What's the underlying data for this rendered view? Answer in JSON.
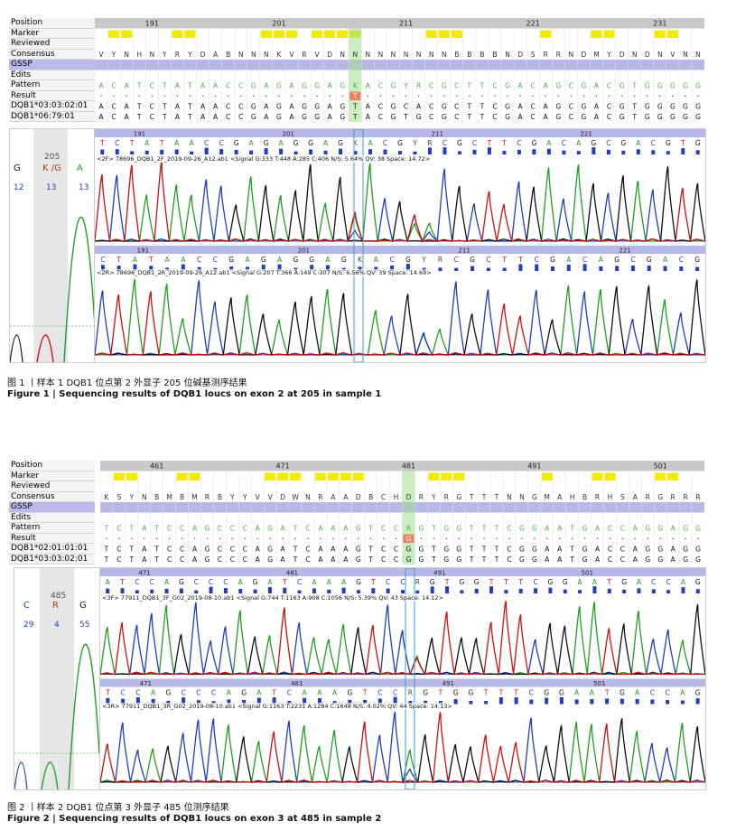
{
  "rowLabels": [
    "Position",
    "Marker",
    "Reviewed",
    "Consensus",
    "GSSP",
    "Edits",
    "Pattern",
    "Result"
  ],
  "figure1": {
    "positions": [
      "191",
      "201",
      "211",
      "221",
      "231"
    ],
    "consensus": "VYNHNYRYDABNNNKVRVDNNNNNNNNNBBBBNDSRRNDMYDNDNVNN",
    "pattern": "ACATCTATAACCGAGAGGAGKACGYRCGCTTCGACAGCGACGTGGGGG",
    "result": "T",
    "alleles": [
      {
        "name": "DQB1*03:03:02:01",
        "seq": "ACATCTATAACCGAGAGGAGTACGCACGCTTCGACAGCGACGTGGGGG"
      },
      {
        "name": "DQB1*06:79:01",
        "seq": "ACATCTATAACCGAGAGGAGTACGTGCGCTTCGACAGCGACGTGGGGG"
      }
    ],
    "pos_label": "205",
    "base_left": "G",
    "base_mid": "K /G",
    "base_right": "A",
    "val_left": "12",
    "val_mid": "13",
    "val_right": "13",
    "trace1": {
      "scale": [
        "191",
        "201",
        "211",
        "221"
      ],
      "seq": "TCTATAACCGAGAGGAGKACGYRCGCTTCGACAGCGACGTG",
      "info": "<2F> 78696_DQB1_2F_2019-09-26_A12.ab1   <Signal G:333 T:448 A:285 C:406 N/S:  5.64% QV: 38  Space: 14.72>"
    },
    "trace2": {
      "scale": [
        "191",
        "201",
        "211",
        "221"
      ],
      "seq": "CTATAACCGAGAGGAGKACGYRCGCTTCGACAGCGACG",
      "info": "<2R> 78696_DQB1_2R_2019-09-26_A12.ab1   <Signal G:207 T:366 A:149 C:307 N/S:  6.56% QV: 39  Space: 14.69>"
    },
    "caption_cn": "图 1 丨样本 1 DQB1 位点第 2 外显子 205 位碱基测序结果",
    "caption_en": "Figure 1  |  Sequencing results of DQB1 loucs on exon 2 at 205 in sample 1"
  },
  "figure2": {
    "positions": [
      "461",
      "471",
      "481",
      "491",
      "501"
    ],
    "consensus": "KSYNBMBMRBYYVVDWNRAADBCHDRYRGTTTNNGMAHBRHSARGRRR",
    "pattern": "TCTATCCAGCCCAGATCAAAGTCCRGTGGTTTCGGAATGACCAGGAGG",
    "result": "G",
    "alleles": [
      {
        "name": "DQB1*02:01:01:01",
        "seq": "TCTATCCAGCCCAGATCAAAGTCCGGTGGTTTCGGAATGACCAGGAGG"
      },
      {
        "name": "DQB1*03:03:02:01",
        "seq": "TCTATCCAGCCCAGATCAAAGTCCGGTGGTTTCGGAATGACCAGGAGG"
      }
    ],
    "pos_label": "485",
    "base_left": "C",
    "base_mid": "R",
    "base_right": "G",
    "val_left": "29",
    "val_mid": "4",
    "val_right": "55",
    "trace1": {
      "scale": [
        "471",
        "481",
        "491",
        "501"
      ],
      "seq": "ATCCAGCCCAGATCAAAGTCCRGTGGTTTCGGAATGACCAG",
      "info": "<3F> 77911_DQB1_3F_G02_2019-08-10.ab1   <Signal G:744 T:1163 A:908 C:1056 N/S:  5.39% QV: 43  Space: 14.12>"
    },
    "trace2": {
      "scale": [
        "471",
        "481",
        "491",
        "501"
      ],
      "seq": "TCCAGCCCAGATCAAAGTCCRGTGGTTTCGGAATGACCAG",
      "info": "<3R> 77911_DQB1_3R_G02_2019-08-10.ab1   <Signal G:1163 T:2231 A:1284 C:1648 N/S:  4.02% QV: 44  Space: 14.13>"
    },
    "caption_cn": "图 2 丨样本 2 DQB1 位点第 3 外显子 485 位测序结果",
    "caption_en": "Figure 2  |  Sequencing results of DQB1 loucs on exon 3 at 485 in sample 2"
  },
  "colors": {
    "A": "#20a020",
    "C": "#1f3fbf",
    "G": "#111111",
    "T": "#d01010",
    "marker": "#f2ea00",
    "header": "#b7b7e6",
    "cursor": "#3aa0d0"
  }
}
